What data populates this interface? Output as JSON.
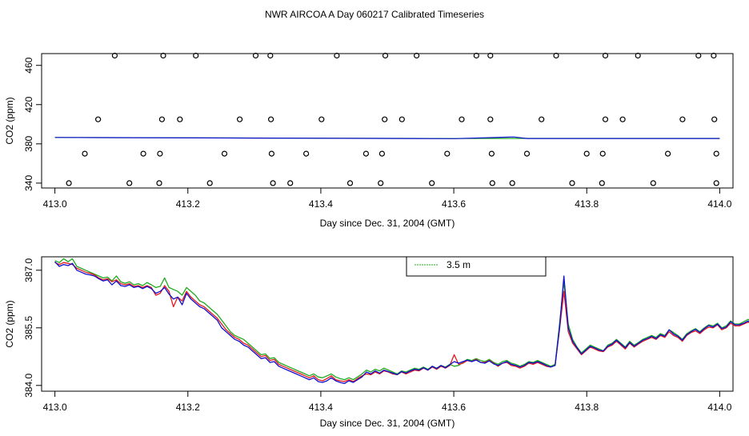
{
  "title": "NWR AIRCOA A  Day 060217  Calibrated Timeseries",
  "colors": {
    "red": "#e41a1c",
    "green": "#1faa1f",
    "blue": "#1010d0",
    "frame": "#000000"
  },
  "chart_data": [
    {
      "type": "scatter",
      "xlabel": "Day since Dec. 31, 2004 (GMT)",
      "ylabel": "CO2 (ppm)",
      "xlim": [
        412.98,
        414.02
      ],
      "ylim": [
        335,
        472
      ],
      "xticks": [
        "413.0",
        "413.2",
        "413.4",
        "413.6",
        "413.8",
        "414.0"
      ],
      "xtick_values": [
        413.0,
        413.2,
        413.4,
        413.6,
        413.8,
        414.0
      ],
      "yticks": [
        "340",
        "380",
        "420",
        "460"
      ],
      "ytick_values": [
        340,
        380,
        420,
        460
      ],
      "flat_series": [
        {
          "color": "green",
          "x": [
            413.0,
            413.3,
            413.6,
            413.7,
            414.0
          ],
          "y": [
            386.5,
            386.0,
            385.4,
            385.6,
            385.6
          ]
        },
        {
          "color": "blue",
          "x": [
            413.0,
            413.3,
            413.6,
            413.69,
            413.71,
            414.0
          ],
          "y": [
            386.5,
            385.9,
            385.3,
            387.0,
            385.5,
            385.5
          ]
        }
      ],
      "circles": {
        "x": [
          413.09,
          413.163,
          413.212,
          413.302,
          413.324,
          413.424,
          413.497,
          413.544,
          413.634,
          413.655,
          413.754,
          413.828,
          413.877,
          413.968,
          413.991,
          413.065,
          413.161,
          413.188,
          413.278,
          413.325,
          413.401,
          413.496,
          413.522,
          413.612,
          413.655,
          413.732,
          413.828,
          413.854,
          413.944,
          413.992,
          413.045,
          413.133,
          413.158,
          413.255,
          413.326,
          413.378,
          413.468,
          413.492,
          413.59,
          413.657,
          413.71,
          413.8,
          413.824,
          413.922,
          413.995,
          413.021,
          413.112,
          413.157,
          413.233,
          413.328,
          413.354,
          413.444,
          413.49,
          413.567,
          413.658,
          413.688,
          413.778,
          413.823,
          413.9,
          413.995
        ],
        "y": [
          470,
          470,
          470,
          470,
          470,
          470,
          470,
          470,
          470,
          470,
          470,
          470,
          470,
          470,
          470,
          405,
          405,
          405,
          405,
          405,
          405,
          405,
          405,
          405,
          405,
          405,
          405,
          405,
          405,
          405,
          370,
          370,
          370,
          370,
          370,
          370,
          370,
          370,
          370,
          370,
          370,
          370,
          370,
          370,
          370,
          340,
          340,
          340,
          340,
          340,
          340,
          340,
          340,
          340,
          340,
          340,
          340,
          340,
          340,
          340
        ]
      }
    },
    {
      "type": "line",
      "xlabel": "Day since Dec. 31, 2004 (GMT)",
      "ylabel": "CO2 (ppm)",
      "xlim": [
        412.98,
        414.02
      ],
      "ylim": [
        383.85,
        387.35
      ],
      "xticks": [
        "413.0",
        "413.2",
        "413.4",
        "413.6",
        "413.8",
        "414.0"
      ],
      "xtick_values": [
        413.0,
        413.2,
        413.4,
        413.6,
        413.8,
        414.0
      ],
      "yticks": [
        "384.0",
        "385.5",
        "387.0"
      ],
      "ytick_values": [
        384.0,
        385.5,
        387.0
      ],
      "legend": {
        "entries": [
          {
            "name": "3.5 m",
            "color": "green"
          }
        ],
        "placement": "top-center"
      },
      "x_start": 413.0,
      "x_step": 0.0066,
      "series": [
        {
          "color": "green",
          "values": [
            387.25,
            387.2,
            387.3,
            387.22,
            387.3,
            387.1,
            387.05,
            387.0,
            386.95,
            386.9,
            386.85,
            386.8,
            386.82,
            386.72,
            386.85,
            386.7,
            386.66,
            386.7,
            386.62,
            386.65,
            386.6,
            386.68,
            386.62,
            386.55,
            386.58,
            386.8,
            386.55,
            386.5,
            386.45,
            386.35,
            386.55,
            386.45,
            386.35,
            386.2,
            386.15,
            386.05,
            385.95,
            385.85,
            385.7,
            385.55,
            385.4,
            385.3,
            385.25,
            385.2,
            385.1,
            385.0,
            384.9,
            384.8,
            384.82,
            384.7,
            384.72,
            384.6,
            384.55,
            384.5,
            384.45,
            384.4,
            384.35,
            384.3,
            384.25,
            384.3,
            384.22,
            384.2,
            384.25,
            384.3,
            384.22,
            384.18,
            384.15,
            384.2,
            384.15,
            384.22,
            384.3,
            384.4,
            384.35,
            384.42,
            384.38,
            384.45,
            384.4,
            384.35,
            384.3,
            384.38,
            384.35,
            384.4,
            384.45,
            384.42,
            384.48,
            384.42,
            384.5,
            384.45,
            384.52,
            384.48,
            384.55,
            384.5,
            384.52,
            384.6,
            384.68,
            384.65,
            384.7,
            384.65,
            384.62,
            384.68,
            384.6,
            384.55,
            384.62,
            384.65,
            384.58,
            384.55,
            384.5,
            384.55,
            384.62,
            384.6,
            384.65,
            384.6,
            384.55,
            384.5,
            384.55,
            385.6,
            386.7,
            385.6,
            385.2,
            385.0,
            384.85,
            384.95,
            385.05,
            385.0,
            384.95,
            384.9,
            385.05,
            385.1,
            385.2,
            385.1,
            385.0,
            385.15,
            385.05,
            385.12,
            385.2,
            385.25,
            385.3,
            385.25,
            385.35,
            385.3,
            385.45,
            385.38,
            385.3,
            385.2,
            385.35,
            385.42,
            385.48,
            385.4,
            385.5,
            385.58,
            385.55,
            385.62,
            385.5,
            385.55,
            385.68,
            385.6,
            385.6,
            385.66,
            385.72,
            385.65
          ]
        },
        {
          "color": "red",
          "values": [
            387.2,
            387.15,
            387.2,
            387.18,
            387.15,
            387.05,
            387.0,
            386.95,
            386.92,
            386.88,
            386.8,
            386.75,
            386.78,
            386.7,
            386.75,
            386.65,
            386.62,
            386.65,
            386.58,
            386.6,
            386.55,
            386.6,
            386.55,
            386.35,
            386.4,
            386.6,
            386.45,
            386.05,
            386.3,
            386.2,
            386.45,
            386.3,
            386.2,
            386.1,
            386.05,
            385.95,
            385.85,
            385.75,
            385.6,
            385.45,
            385.35,
            385.25,
            385.2,
            385.1,
            385.05,
            384.95,
            384.85,
            384.75,
            384.78,
            384.65,
            384.68,
            384.55,
            384.5,
            384.45,
            384.4,
            384.35,
            384.3,
            384.25,
            384.2,
            384.25,
            384.15,
            384.12,
            384.18,
            384.25,
            384.15,
            384.12,
            384.1,
            384.15,
            384.1,
            384.18,
            384.25,
            384.3,
            384.28,
            384.35,
            384.3,
            384.38,
            384.35,
            384.3,
            384.28,
            384.35,
            384.3,
            384.35,
            384.4,
            384.38,
            384.45,
            384.4,
            384.48,
            384.42,
            384.5,
            384.45,
            384.52,
            384.8,
            384.55,
            384.58,
            384.65,
            384.62,
            384.68,
            384.6,
            384.6,
            384.65,
            384.58,
            384.5,
            384.58,
            384.6,
            384.52,
            384.5,
            384.45,
            384.5,
            384.58,
            384.55,
            384.6,
            384.55,
            384.5,
            384.48,
            384.52,
            385.45,
            386.45,
            385.4,
            385.1,
            384.95,
            384.8,
            384.9,
            385.0,
            384.95,
            384.9,
            384.88,
            385.0,
            385.05,
            385.15,
            385.05,
            384.95,
            385.1,
            385.0,
            385.08,
            385.15,
            385.2,
            385.25,
            385.2,
            385.3,
            385.25,
            385.4,
            385.3,
            385.25,
            385.15,
            385.3,
            385.38,
            385.42,
            385.35,
            385.45,
            385.52,
            385.5,
            385.58,
            385.45,
            385.5,
            385.62,
            385.55,
            385.55,
            385.6,
            385.65,
            385.6
          ]
        },
        {
          "color": "blue",
          "values": [
            387.22,
            387.1,
            387.15,
            387.12,
            387.18,
            387.0,
            386.95,
            386.9,
            386.88,
            386.85,
            386.78,
            386.72,
            386.75,
            386.62,
            386.72,
            386.6,
            386.58,
            386.62,
            386.55,
            386.58,
            386.52,
            386.58,
            386.52,
            386.4,
            386.45,
            386.55,
            386.38,
            386.25,
            386.3,
            386.1,
            386.4,
            386.25,
            386.15,
            386.05,
            386.0,
            385.9,
            385.8,
            385.7,
            385.5,
            385.4,
            385.3,
            385.2,
            385.15,
            385.05,
            385.0,
            384.9,
            384.8,
            384.7,
            384.72,
            384.6,
            384.62,
            384.5,
            384.45,
            384.4,
            384.35,
            384.3,
            384.25,
            384.2,
            384.15,
            384.2,
            384.1,
            384.08,
            384.12,
            384.2,
            384.12,
            384.08,
            384.05,
            384.12,
            384.08,
            384.15,
            384.22,
            384.35,
            384.3,
            384.38,
            384.32,
            384.4,
            384.36,
            384.32,
            384.28,
            384.36,
            384.32,
            384.38,
            384.42,
            384.4,
            384.46,
            384.4,
            384.5,
            384.44,
            384.52,
            384.46,
            384.54,
            384.62,
            384.58,
            384.62,
            384.66,
            384.62,
            384.66,
            384.6,
            384.58,
            384.64,
            384.56,
            384.52,
            384.58,
            384.62,
            384.55,
            384.52,
            384.48,
            384.52,
            384.6,
            384.58,
            384.62,
            384.58,
            384.52,
            384.48,
            384.52,
            385.5,
            386.85,
            385.5,
            385.15,
            384.98,
            384.82,
            384.92,
            385.02,
            384.98,
            384.92,
            384.9,
            385.02,
            385.08,
            385.18,
            385.08,
            384.98,
            385.12,
            385.02,
            385.1,
            385.18,
            385.22,
            385.28,
            385.22,
            385.32,
            385.28,
            385.45,
            385.34,
            385.28,
            385.18,
            385.32,
            385.4,
            385.46,
            385.38,
            385.48,
            385.56,
            385.52,
            385.6,
            385.48,
            385.52,
            385.66,
            385.58,
            385.58,
            385.62,
            385.68,
            385.55
          ]
        }
      ]
    }
  ]
}
